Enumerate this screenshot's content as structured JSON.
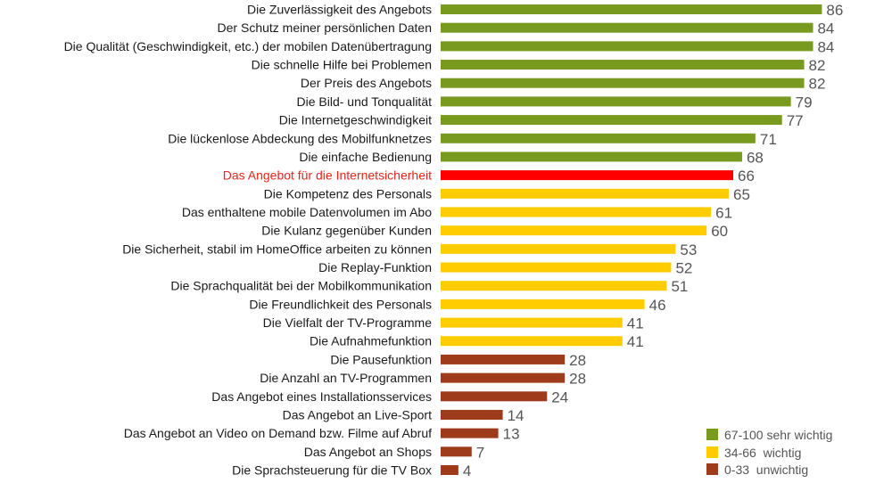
{
  "chart_data": {
    "type": "bar",
    "orientation": "horizontal",
    "categories": [
      "Die Zuverlässigkeit des Angebots",
      "Der Schutz meiner persönlichen Daten",
      "Die Qualität (Geschwindigkeit, etc.) der mobilen Datenübertragung",
      "Die schnelle Hilfe bei Problemen",
      "Der Preis des Angebots",
      "Die Bild- und Tonqualität",
      "Die Internetgeschwindigkeit",
      "Die lückenlose Abdeckung des Mobilfunknetzes",
      "Die einfache Bedienung",
      "Das Angebot für die Internetsicherheit",
      "Die Kompetenz des Personals",
      "Das enthaltene mobile Datenvolumen im Abo",
      "Die Kulanz gegenüber Kunden",
      "Die Sicherheit, stabil im HomeOffice arbeiten zu können",
      "Die Replay-Funktion",
      "Die Sprachqualität bei der Mobilkommunikation",
      "Die Freundlichkeit des Personals",
      "Die Vielfalt der TV-Programme",
      "Die Aufnahmefunktion",
      "Die Pausefunktion",
      "Die Anzahl an TV-Programmen",
      "Das Angebot eines Installationsservices",
      "Das Angebot an Live-Sport",
      "Das Angebot an Video on Demand bzw. Filme auf Abruf",
      "Das Angebot an Shops",
      "Die Sprachsteuerung für die TV Box"
    ],
    "values": [
      86,
      84,
      84,
      82,
      82,
      79,
      77,
      71,
      68,
      66,
      65,
      61,
      60,
      53,
      52,
      51,
      46,
      41,
      41,
      28,
      28,
      24,
      14,
      13,
      7,
      4
    ],
    "classes": [
      "high",
      "high",
      "high",
      "high",
      "high",
      "high",
      "high",
      "high",
      "high",
      "highlight",
      "mid",
      "mid",
      "mid",
      "mid",
      "mid",
      "mid",
      "mid",
      "mid",
      "mid",
      "low",
      "low",
      "low",
      "low",
      "low",
      "low",
      "low"
    ],
    "highlight_index": 9,
    "xlim": [
      0,
      100
    ],
    "grid": false,
    "legend_position": "bottom-right",
    "legend": [
      {
        "key": "high",
        "label": "67-100 sehr wichtig"
      },
      {
        "key": "mid",
        "label": "34-66  wichtig"
      },
      {
        "key": "low",
        "label": "0-33  unwichtig"
      }
    ],
    "colors": {
      "high": "#789a1e",
      "mid": "#ffcc00",
      "low": "#9e3b1b",
      "highlight": "#ff0000",
      "highlight_text": "#e8231c",
      "value_text": "#555555",
      "label_text": "#1a1a1a"
    }
  }
}
